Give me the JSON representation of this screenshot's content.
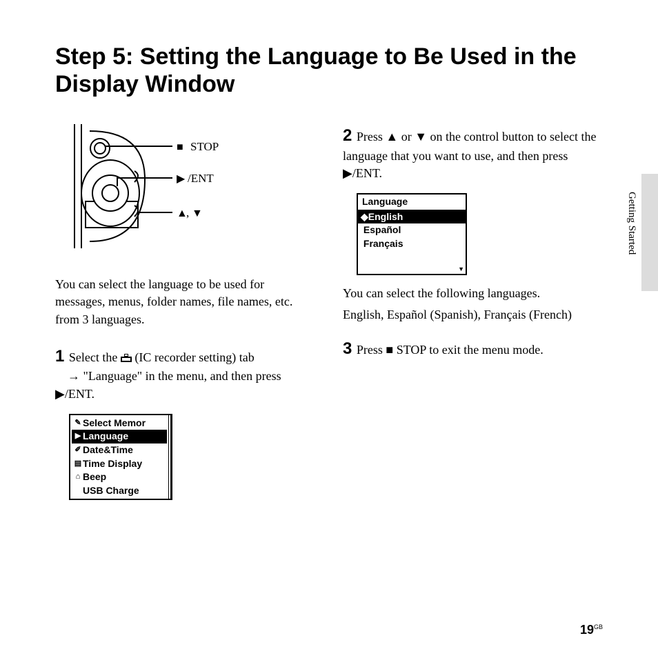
{
  "title": "Step 5: Setting the Language to Be Used in the Display Window",
  "side_label": "Getting Started",
  "page_number": "19",
  "page_region": "GB",
  "diagram": {
    "labels": {
      "stop": "STOP",
      "ent": "/ENT",
      "updown": ","
    }
  },
  "intro": "You can select the language to be used for messages, menus, folder names, file names, etc. from 3 languages.",
  "step1": {
    "num": "1",
    "text_a": "Select the ",
    "icon_desc": "(IC recorder setting) tab",
    "text_b": "→ \"Language\" in the menu, and then press ",
    "ent_suffix": "/ENT."
  },
  "menu1": {
    "items": [
      {
        "label": "Select Memor",
        "highlight": false
      },
      {
        "label": "Language",
        "highlight": true
      },
      {
        "label": "Date&Time",
        "highlight": false
      },
      {
        "label": "Time Display",
        "highlight": false
      },
      {
        "label": "Beep",
        "highlight": false
      },
      {
        "label": "USB Charge",
        "highlight": false
      }
    ]
  },
  "step2": {
    "num": "2",
    "text_a": "Press ",
    "text_b": " or ",
    "text_c": " on the control button to select the language that you want to use, and then press ",
    "ent_suffix": "/ENT."
  },
  "menu2": {
    "header": "Language",
    "options": [
      {
        "label": "English",
        "highlight": true,
        "marker": "◆"
      },
      {
        "label": "Español",
        "highlight": false,
        "marker": ""
      },
      {
        "label": "Français",
        "highlight": false,
        "marker": ""
      }
    ]
  },
  "lang_note_a": "You can select the following languages.",
  "lang_note_b": "English, Español (Spanish), Français (French)",
  "step3": {
    "num": "3",
    "text_a": "Press ",
    "text_b": " STOP to exit the menu mode."
  }
}
